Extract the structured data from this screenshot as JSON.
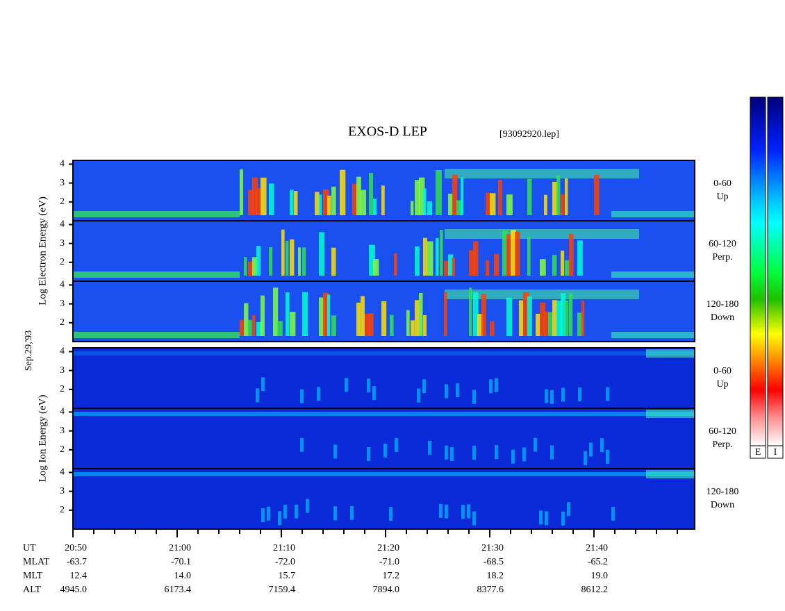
{
  "chart_data": {
    "type": "spectrogram",
    "title": "EXOS-D LEP",
    "subtitle": "[93092920.lep]",
    "date": "Sep.29,'93",
    "ylim": [
      1,
      4.2
    ],
    "yticks": [
      2,
      3,
      4
    ],
    "groups": [
      {
        "ylabel": "Log Electron Energy (eV)",
        "panels": [
          {
            "angle": "0-60",
            "direction": "Up"
          },
          {
            "angle": "60-120",
            "direction": "Perp."
          },
          {
            "angle": "120-180",
            "direction": "Down"
          }
        ]
      },
      {
        "ylabel": "Log Ion Energy (eV)",
        "panels": [
          {
            "angle": "0-60",
            "direction": "Up"
          },
          {
            "angle": "60-120",
            "direction": "Perp."
          },
          {
            "angle": "120-180",
            "direction": "Down"
          }
        ]
      }
    ],
    "colorbars": [
      "E",
      "I"
    ],
    "axis_table": [
      {
        "label": "UT",
        "values": [
          "20:50",
          "21:00",
          "21:10",
          "21:20",
          "21:30",
          "21:40"
        ]
      },
      {
        "label": "MLAT",
        "values": [
          -63.7,
          -70.1,
          -72.0,
          -71.0,
          -68.5,
          -65.2
        ],
        "value_labels": [
          "-63.7",
          "-70.1",
          "-72.0",
          "-71.0",
          "-68.5",
          "-65.2"
        ]
      },
      {
        "label": "MLT",
        "values": [
          12.4,
          14.0,
          15.7,
          17.2,
          18.2,
          19.0
        ],
        "value_labels": [
          "12.4",
          "14.0",
          "15.7",
          "17.2",
          "18.2",
          "19.0"
        ]
      },
      {
        "label": "ALT",
        "values": [
          4945.0,
          6173.4,
          7159.4,
          7894.0,
          8377.6,
          8612.2
        ],
        "value_labels": [
          "4945.0",
          "6173.4",
          "7159.4",
          "7894.0",
          "8377.6",
          "8612.2"
        ]
      }
    ]
  }
}
